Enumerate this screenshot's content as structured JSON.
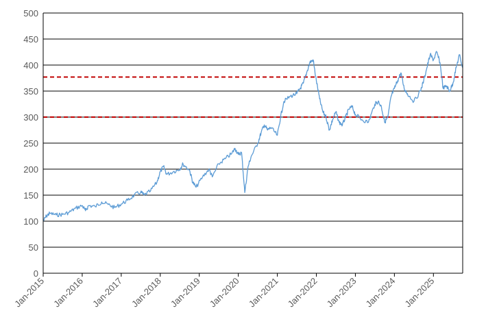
{
  "chart_data": {
    "type": "line",
    "title": "",
    "xlabel": "",
    "ylabel": "",
    "ylim": [
      0,
      500
    ],
    "yticks": [
      0,
      50,
      100,
      150,
      200,
      250,
      300,
      350,
      400,
      450,
      500
    ],
    "ytick_labels": [
      "0",
      "50",
      "100",
      "150",
      "200",
      "250",
      "300",
      "350",
      "400",
      "450",
      "500"
    ],
    "xlim": [
      "2015-01",
      "2025-10"
    ],
    "xticks": [
      "2015-01",
      "2016-01",
      "2017-01",
      "2018-01",
      "2019-01",
      "2020-01",
      "2021-01",
      "2022-01",
      "2023-01",
      "2024-01",
      "2025-01"
    ],
    "xtick_labels": [
      "Jan-2015",
      "Jan-2016",
      "Jan-2017",
      "Jan-2018",
      "Jan-2019",
      "Jan-2020",
      "Jan-2021",
      "Jan-2022",
      "Jan-2023",
      "Jan-2024",
      "Jan-2025"
    ],
    "grid": "horizontal",
    "legend": "none",
    "series": [
      {
        "color": "#5b9bd5",
        "points": [
          [
            "2015-01",
            100
          ],
          [
            "2015-02",
            110
          ],
          [
            "2015-03",
            115
          ],
          [
            "2015-05",
            112
          ],
          [
            "2015-07",
            113
          ],
          [
            "2015-09",
            117
          ],
          [
            "2015-11",
            125
          ],
          [
            "2016-01",
            130
          ],
          [
            "2016-02",
            120
          ],
          [
            "2016-03",
            130
          ],
          [
            "2016-05",
            128
          ],
          [
            "2016-07",
            137
          ],
          [
            "2016-09",
            132
          ],
          [
            "2016-11",
            126
          ],
          [
            "2017-01",
            133
          ],
          [
            "2017-03",
            140
          ],
          [
            "2017-05",
            150
          ],
          [
            "2017-07",
            156
          ],
          [
            "2017-08",
            150
          ],
          [
            "2017-10",
            158
          ],
          [
            "2017-12",
            175
          ],
          [
            "2018-01",
            195
          ],
          [
            "2018-02",
            205
          ],
          [
            "2018-03",
            190
          ],
          [
            "2018-05",
            195
          ],
          [
            "2018-07",
            200
          ],
          [
            "2018-08",
            210
          ],
          [
            "2018-10",
            198
          ],
          [
            "2018-11",
            175
          ],
          [
            "2018-12",
            165
          ],
          [
            "2019-02",
            185
          ],
          [
            "2019-04",
            200
          ],
          [
            "2019-05",
            185
          ],
          [
            "2019-07",
            210
          ],
          [
            "2019-09",
            220
          ],
          [
            "2019-11",
            230
          ],
          [
            "2019-12",
            240
          ],
          [
            "2020-01",
            228
          ],
          [
            "2020-02",
            232
          ],
          [
            "2020-03",
            155
          ],
          [
            "2020-04",
            205
          ],
          [
            "2020-05",
            225
          ],
          [
            "2020-07",
            250
          ],
          [
            "2020-08",
            270
          ],
          [
            "2020-09",
            285
          ],
          [
            "2020-10",
            275
          ],
          [
            "2020-11",
            280
          ],
          [
            "2021-01",
            265
          ],
          [
            "2021-02",
            300
          ],
          [
            "2021-03",
            330
          ],
          [
            "2021-05",
            340
          ],
          [
            "2021-07",
            345
          ],
          [
            "2021-08",
            355
          ],
          [
            "2021-09",
            365
          ],
          [
            "2021-10",
            385
          ],
          [
            "2021-11",
            405
          ],
          [
            "2021-12",
            410
          ],
          [
            "2022-01",
            370
          ],
          [
            "2022-02",
            335
          ],
          [
            "2022-03",
            310
          ],
          [
            "2022-04",
            300
          ],
          [
            "2022-05",
            275
          ],
          [
            "2022-06",
            295
          ],
          [
            "2022-07",
            310
          ],
          [
            "2022-08",
            290
          ],
          [
            "2022-09",
            285
          ],
          [
            "2022-10",
            300
          ],
          [
            "2022-11",
            315
          ],
          [
            "2022-12",
            320
          ],
          [
            "2023-01",
            305
          ],
          [
            "2023-03",
            295
          ],
          [
            "2023-05",
            290
          ],
          [
            "2023-07",
            325
          ],
          [
            "2023-08",
            330
          ],
          [
            "2023-09",
            320
          ],
          [
            "2023-10",
            290
          ],
          [
            "2023-11",
            300
          ],
          [
            "2023-12",
            340
          ],
          [
            "2024-01",
            355
          ],
          [
            "2024-02",
            370
          ],
          [
            "2024-03",
            385
          ],
          [
            "2024-04",
            355
          ],
          [
            "2024-05",
            345
          ],
          [
            "2024-07",
            330
          ],
          [
            "2024-09",
            350
          ],
          [
            "2024-10",
            370
          ],
          [
            "2024-11",
            395
          ],
          [
            "2024-12",
            420
          ],
          [
            "2025-01",
            410
          ],
          [
            "2025-02",
            425
          ],
          [
            "2025-03",
            405
          ],
          [
            "2025-04",
            355
          ],
          [
            "2025-05",
            360
          ],
          [
            "2025-06",
            350
          ],
          [
            "2025-07",
            365
          ],
          [
            "2025-08",
            395
          ],
          [
            "2025-09",
            420
          ],
          [
            "2025-10",
            395
          ]
        ]
      }
    ],
    "reference_lines": [
      {
        "y": 377,
        "color": "#c00000",
        "style": "dashed"
      },
      {
        "y": 300,
        "color": "#c00000",
        "style": "dashed"
      }
    ]
  }
}
